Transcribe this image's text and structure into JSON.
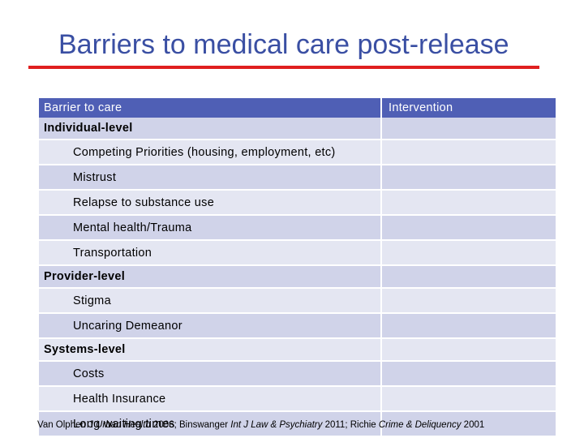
{
  "title": "Barriers to medical care post-release",
  "table": {
    "headers": {
      "left": "Barrier to care",
      "right": "Intervention"
    },
    "rows": [
      {
        "text": "Individual-level",
        "kind": "group"
      },
      {
        "text": "Competing Priorities (housing, employment, etc)",
        "kind": "item"
      },
      {
        "text": "Mistrust",
        "kind": "item"
      },
      {
        "text": "Relapse to substance use",
        "kind": "item"
      },
      {
        "text": "Mental health/Trauma",
        "kind": "item"
      },
      {
        "text": "Transportation",
        "kind": "item"
      },
      {
        "text": "Provider-level",
        "kind": "group"
      },
      {
        "text": "Stigma",
        "kind": "item"
      },
      {
        "text": "Uncaring Demeanor",
        "kind": "item"
      },
      {
        "text": "Systems-level",
        "kind": "group"
      },
      {
        "text": "Costs",
        "kind": "item"
      },
      {
        "text": "Health Insurance",
        "kind": "item"
      },
      {
        "text": "Long waiting times",
        "kind": "item"
      }
    ]
  },
  "citation": {
    "a1": "Van Olphen ",
    "a2": "J Urban Health",
    "a3": " 2006; Binswanger ",
    "a4": "Int J Law & Psychiatry",
    "a5": " 2011; Richie ",
    "a6": "Crime & Deliquency",
    "a7": " 2001"
  },
  "colors": {
    "title": "#3a4fa3",
    "rule": "#e02020",
    "header_bg": "#4f5fb5",
    "row_light": "#e4e6f2",
    "row_dark": "#d0d3e9"
  }
}
